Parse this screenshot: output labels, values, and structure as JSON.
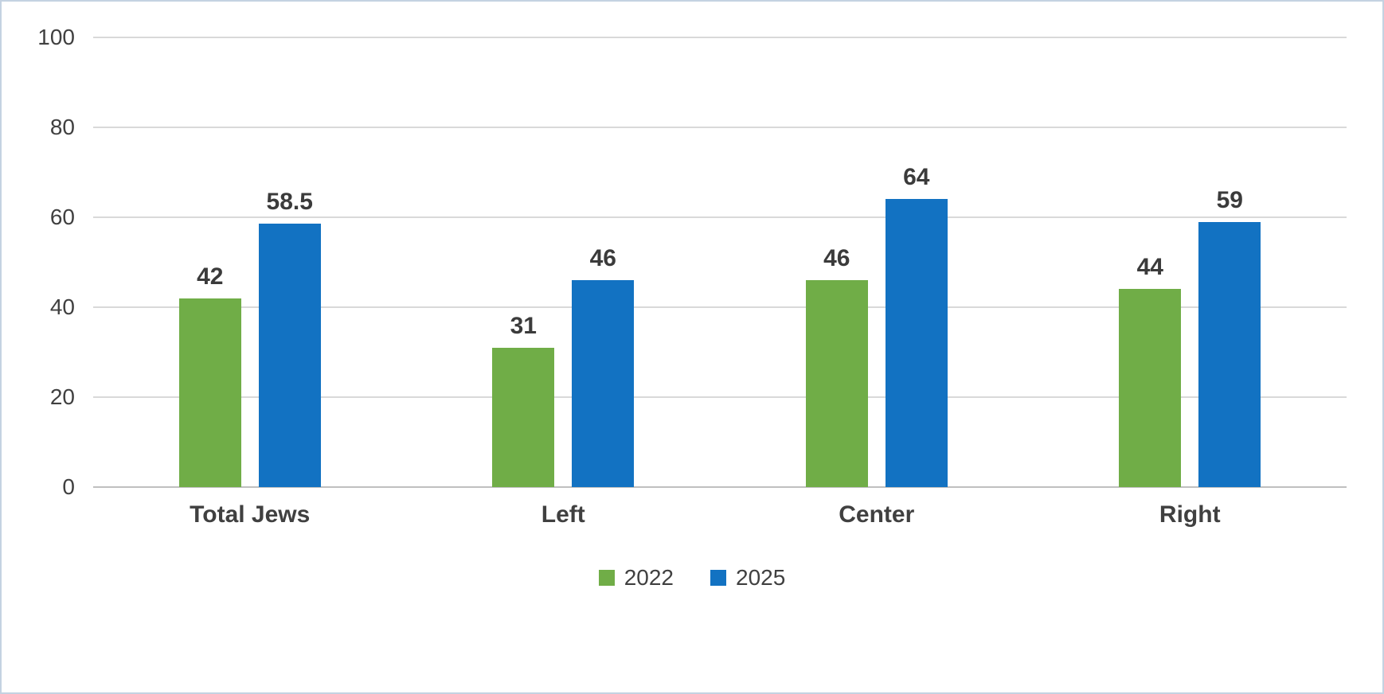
{
  "chart_data": {
    "type": "bar",
    "title": "",
    "xlabel": "",
    "ylabel": "",
    "categories": [
      "Total Jews",
      "Left",
      "Center",
      "Right"
    ],
    "series": [
      {
        "name": "2022",
        "color": "#70AD47",
        "values": [
          42,
          31,
          46,
          44
        ]
      },
      {
        "name": "2025",
        "color": "#1272C2",
        "values": [
          58.5,
          46,
          64,
          59
        ]
      }
    ],
    "ylim": [
      0,
      100
    ],
    "yticks": [
      0,
      20,
      40,
      60,
      80,
      100
    ],
    "grid": "horizontal",
    "legend_position": "bottom",
    "data_labels": true
  },
  "colors": {
    "grid": "#D9D9D9",
    "axis": "#BFBFBF",
    "text": "#404040",
    "border": "#C4D2E2",
    "background": "#FFFFFF"
  }
}
